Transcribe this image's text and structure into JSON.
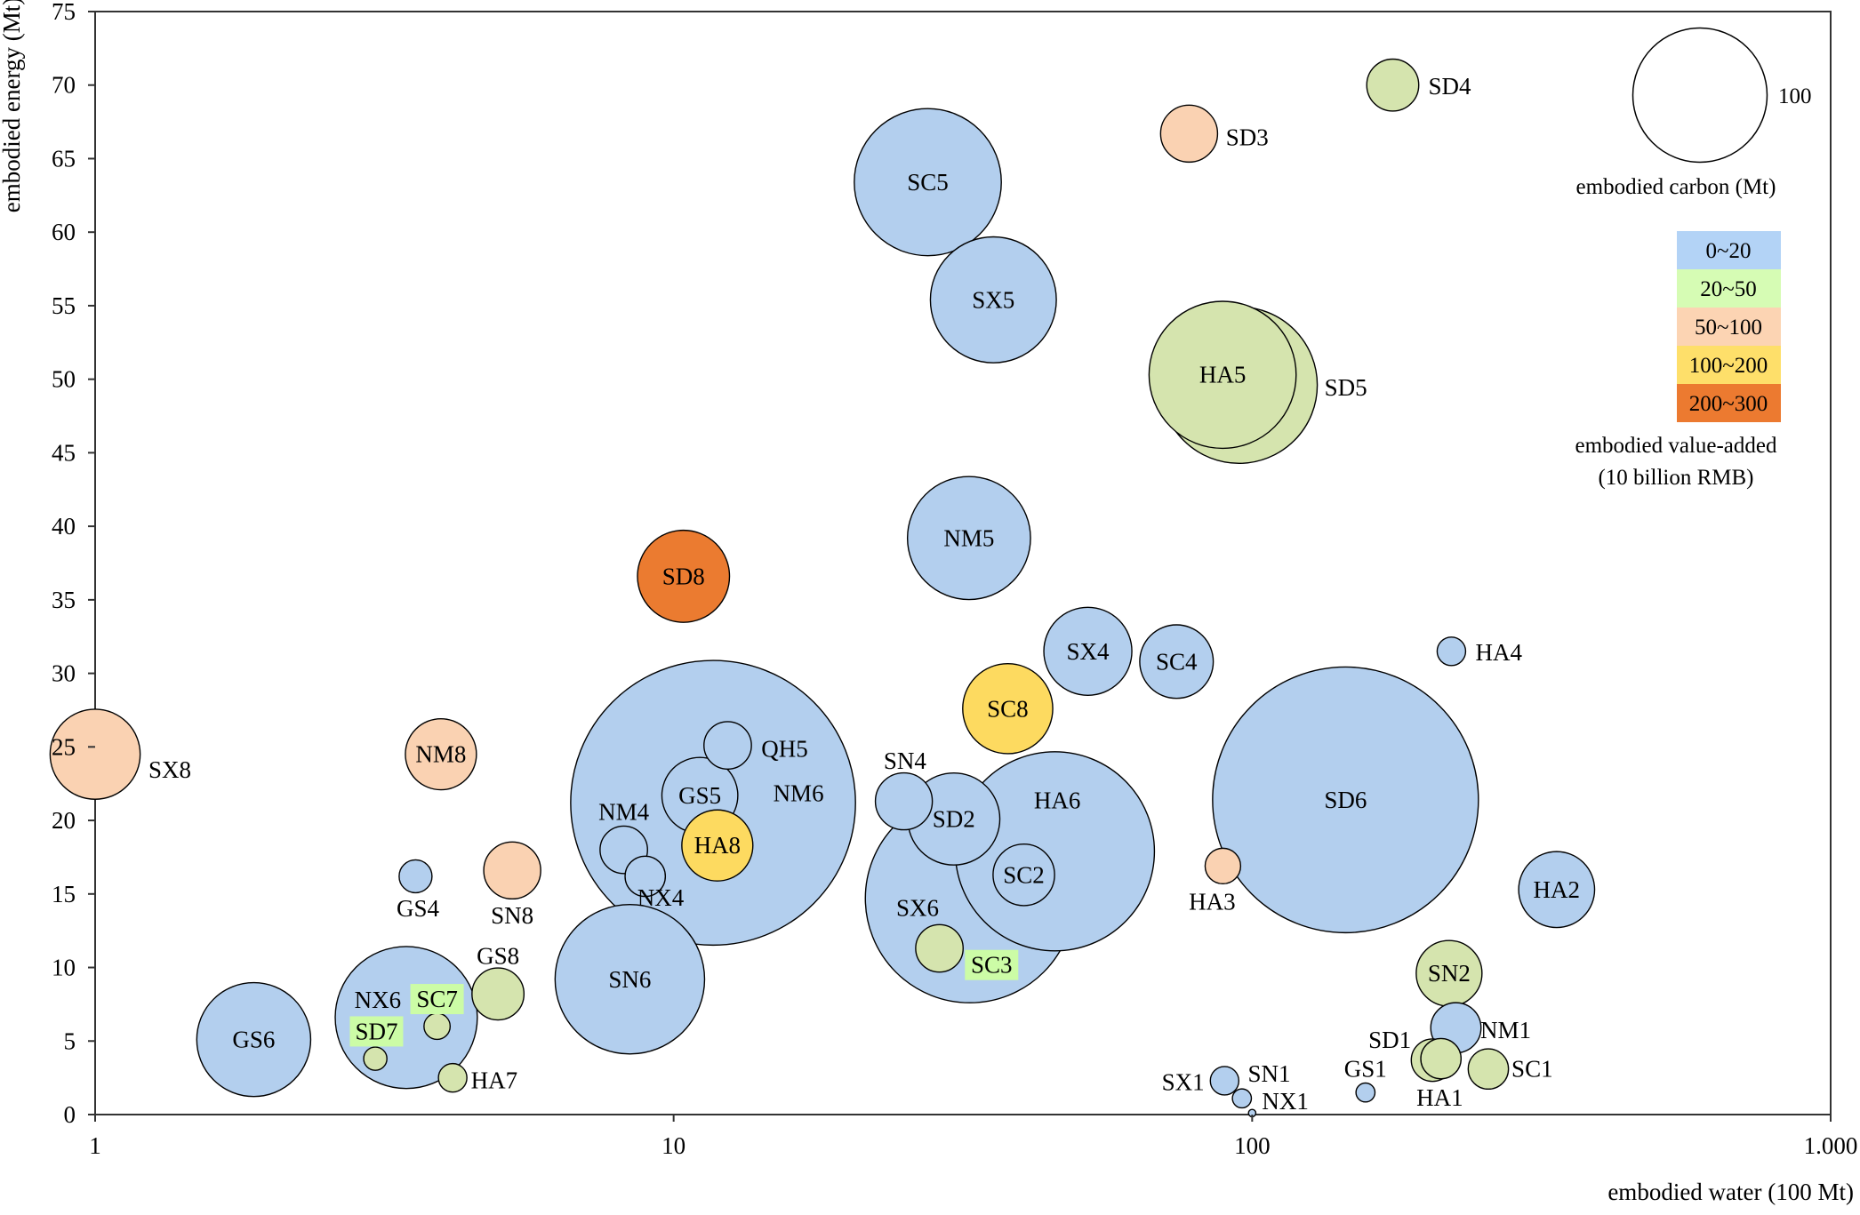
{
  "chart_data": {
    "type": "scatter",
    "subtype": "bubble",
    "xlabel": "embodied water (100 Mt)",
    "ylabel": "embodied energy (Mt)",
    "xscale": "log",
    "xlim": [
      1,
      1000
    ],
    "ylim": [
      0,
      75
    ],
    "x_ticks": [
      1,
      10,
      100,
      1000
    ],
    "x_tick_labels": [
      "1",
      "10",
      "100",
      "1.000"
    ],
    "y_ticks": [
      0,
      5,
      10,
      15,
      20,
      25,
      30,
      35,
      40,
      45,
      50,
      55,
      60,
      65,
      70,
      75
    ],
    "y_tick_labels": [
      "0",
      "5",
      "10",
      "15",
      "20",
      "25",
      "30",
      "35",
      "40",
      "45",
      "50",
      "55",
      "60",
      "65",
      "70",
      "75"
    ],
    "grid": false,
    "size_legend": {
      "title": "embodied carbon (Mt)",
      "value": 100,
      "label": "100"
    },
    "color_legend": {
      "title_line1": "embodied value-added",
      "title_line2": "(10 billion RMB)",
      "placement": "right",
      "classes": [
        {
          "label": "0~20",
          "color": "#b3d3f6",
          "bubble_color": "#b3cfee"
        },
        {
          "label": "20~50",
          "color": "#d6fcb4",
          "bubble_color": "#d5e4ae"
        },
        {
          "label": "50~100",
          "color": "#fcd4b3",
          "bubble_color": "#fad2b2"
        },
        {
          "label": "100~200",
          "color": "#fedf6a",
          "bubble_color": "#fdda60"
        },
        {
          "label": "200~300",
          "color": "#ec7a30",
          "bubble_color": "#eb7b30"
        }
      ]
    },
    "points": [
      {
        "name": "SX8",
        "water": 1.0,
        "energy": 24.5,
        "carbon": 45,
        "value_class": 2
      },
      {
        "name": "GS6",
        "water": 1.88,
        "energy": 5.1,
        "carbon": 72,
        "value_class": 0
      },
      {
        "name": "NX6",
        "water": 3.45,
        "energy": 6.6,
        "carbon": 112,
        "value_class": 0
      },
      {
        "name": "SD7",
        "water": 3.05,
        "energy": 3.8,
        "carbon": 3,
        "value_class": 1
      },
      {
        "name": "SC7",
        "water": 3.9,
        "energy": 6.0,
        "carbon": 3.8,
        "value_class": 1
      },
      {
        "name": "HA7",
        "water": 4.15,
        "energy": 2.5,
        "carbon": 4.5,
        "value_class": 1
      },
      {
        "name": "GS8",
        "water": 4.97,
        "energy": 8.2,
        "carbon": 15,
        "value_class": 1
      },
      {
        "name": "GS4",
        "water": 3.58,
        "energy": 16.2,
        "carbon": 6,
        "value_class": 0
      },
      {
        "name": "SN8",
        "water": 5.26,
        "energy": 16.6,
        "carbon": 18,
        "value_class": 2
      },
      {
        "name": "NM8",
        "water": 3.96,
        "energy": 24.5,
        "carbon": 28,
        "value_class": 2
      },
      {
        "name": "SN6",
        "water": 8.4,
        "energy": 9.2,
        "carbon": 124,
        "value_class": 0
      },
      {
        "name": "NM6",
        "water": 11.7,
        "energy": 21.2,
        "carbon": 450,
        "value_class": 0
      },
      {
        "name": "QH5",
        "water": 12.4,
        "energy": 25.1,
        "carbon": 12.5,
        "value_class": 0
      },
      {
        "name": "GS5",
        "water": 11.1,
        "energy": 21.7,
        "carbon": 32,
        "value_class": 0
      },
      {
        "name": "NM4",
        "water": 8.2,
        "energy": 18.0,
        "carbon": 12.5,
        "value_class": 0
      },
      {
        "name": "NX4",
        "water": 8.93,
        "energy": 16.2,
        "carbon": 9,
        "value_class": 0
      },
      {
        "name": "HA8",
        "water": 11.9,
        "energy": 18.3,
        "carbon": 28,
        "value_class": 3
      },
      {
        "name": "SD8",
        "water": 10.4,
        "energy": 36.6,
        "carbon": 47,
        "value_class": 4
      },
      {
        "name": "SC5",
        "water": 27.5,
        "energy": 63.4,
        "carbon": 120,
        "value_class": 0
      },
      {
        "name": "SX5",
        "water": 35.7,
        "energy": 55.4,
        "carbon": 88,
        "value_class": 0
      },
      {
        "name": "NM5",
        "water": 32.4,
        "energy": 39.2,
        "carbon": 84,
        "value_class": 0
      },
      {
        "name": "SD3",
        "water": 77.8,
        "energy": 66.7,
        "carbon": 18,
        "value_class": 2
      },
      {
        "name": "SD4",
        "water": 175,
        "energy": 70.0,
        "carbon": 15,
        "value_class": 1
      },
      {
        "name": "SD5",
        "water": 94.9,
        "energy": 49.6,
        "carbon": 136,
        "value_class": 1
      },
      {
        "name": "HA5",
        "water": 88.9,
        "energy": 50.3,
        "carbon": 120,
        "value_class": 1
      },
      {
        "name": "SX4",
        "water": 52,
        "energy": 31.5,
        "carbon": 43,
        "value_class": 0
      },
      {
        "name": "SC4",
        "water": 74,
        "energy": 30.8,
        "carbon": 30,
        "value_class": 0
      },
      {
        "name": "SC8",
        "water": 37.8,
        "energy": 27.6,
        "carbon": 45,
        "value_class": 3
      },
      {
        "name": "HA4",
        "water": 221,
        "energy": 31.5,
        "carbon": 4.5,
        "value_class": 0
      },
      {
        "name": "SD6",
        "water": 145,
        "energy": 21.4,
        "carbon": 392,
        "value_class": 0
      },
      {
        "name": "HA3",
        "water": 89,
        "energy": 16.9,
        "carbon": 7,
        "value_class": 2
      },
      {
        "name": "HA2",
        "water": 336,
        "energy": 15.3,
        "carbon": 32,
        "value_class": 0
      },
      {
        "name": "HA6",
        "water": 45.6,
        "energy": 17.9,
        "carbon": 220,
        "value_class": 0
      },
      {
        "name": "SX6",
        "water": 32.5,
        "energy": 14.7,
        "carbon": 242,
        "value_class": 0
      },
      {
        "name": "SD2",
        "water": 30.5,
        "energy": 20.1,
        "carbon": 47,
        "value_class": 0
      },
      {
        "name": "SN4",
        "water": 25,
        "energy": 21.3,
        "carbon": 18,
        "value_class": 0
      },
      {
        "name": "SC2",
        "water": 40.3,
        "energy": 16.3,
        "carbon": 21,
        "value_class": 0
      },
      {
        "name": "SC3",
        "water": 28.8,
        "energy": 11.3,
        "carbon": 12.5,
        "value_class": 1
      },
      {
        "name": "SN2",
        "water": 219,
        "energy": 9.6,
        "carbon": 24,
        "value_class": 1
      },
      {
        "name": "NM1",
        "water": 225,
        "energy": 5.9,
        "carbon": 14,
        "value_class": 0
      },
      {
        "name": "SD1",
        "water": 205,
        "energy": 3.7,
        "carbon": 10,
        "value_class": 1
      },
      {
        "name": "HA1",
        "water": 212,
        "energy": 3.8,
        "carbon": 9,
        "value_class": 1
      },
      {
        "name": "SC1",
        "water": 256,
        "energy": 3.1,
        "carbon": 9,
        "value_class": 1
      },
      {
        "name": "GS1",
        "water": 157,
        "energy": 1.5,
        "carbon": 2,
        "value_class": 0
      },
      {
        "name": "SX1",
        "water": 89.6,
        "energy": 2.3,
        "carbon": 4.5,
        "value_class": 0
      },
      {
        "name": "SN1",
        "water": 96,
        "energy": 1.1,
        "carbon": 2,
        "value_class": 0
      },
      {
        "name": "NX1",
        "water": 100,
        "energy": 0.1,
        "carbon": 0.3,
        "value_class": 0
      }
    ]
  }
}
